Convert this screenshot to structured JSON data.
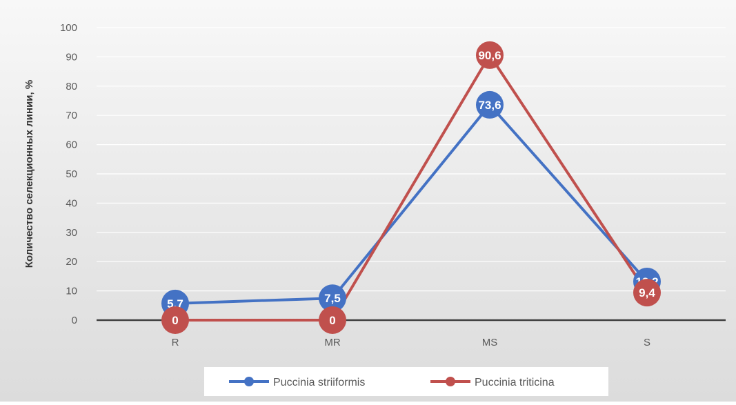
{
  "chart_data": {
    "type": "line",
    "title": "",
    "categories": [
      "R",
      "MR",
      "MS",
      "S"
    ],
    "series": [
      {
        "name": "Puccinia striiformis",
        "values": [
          5.7,
          7.5,
          73.6,
          13.2
        ],
        "labels": [
          "5,7",
          "7,5",
          "73,6",
          "13,2"
        ],
        "color": "#4472C4"
      },
      {
        "name": "Puccinia triticina",
        "values": [
          0,
          0,
          90.6,
          9.4
        ],
        "labels": [
          "0",
          "0",
          "90,6",
          "9,4"
        ],
        "color": "#C0504D"
      }
    ],
    "ylabel": "Количество селекционных линии, %",
    "xlabel": "",
    "ylim": [
      0,
      100
    ],
    "yticks": [
      0,
      10,
      20,
      30,
      40,
      50,
      60,
      70,
      80,
      90,
      100
    ],
    "grid": true,
    "legend_position": "bottom",
    "background_color": "#EDEDED",
    "gridline_color": "#FFFFFF",
    "axis_color": "#404040",
    "text_color": "#595959"
  }
}
